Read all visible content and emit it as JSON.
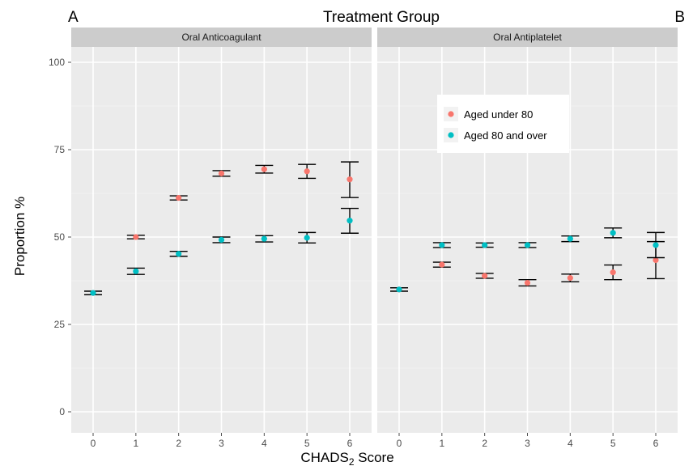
{
  "figure": {
    "title": "Treatment Group",
    "label_a": "A",
    "label_b": "B"
  },
  "axes": {
    "ylabel": "Proportion %",
    "xlabel_main": "CHADS",
    "xlabel_sub": "2",
    "xlabel_tail": " Score"
  },
  "colors": {
    "panel_bg": "#ebebeb",
    "strip_bg": "#cccccc",
    "grid": "#ffffff",
    "under80": "#f8766d",
    "over80": "#00bfc4",
    "errorbar": "#000000"
  },
  "chart_data": {
    "type": "scatter",
    "subtype": "point-with-error-bars, faceted",
    "x_label": "CHADS2 Score",
    "y_label": "Proportion %",
    "ylim": [
      0,
      100
    ],
    "y_ticks": [
      0,
      25,
      50,
      75,
      100
    ],
    "x_ticks": [
      0,
      1,
      2,
      3,
      4,
      5,
      6
    ],
    "grid": true,
    "legend": {
      "placement": "inside-right-panel, upper-left",
      "entries": [
        "Aged under 80",
        "Aged 80 and over"
      ]
    },
    "panels": [
      {
        "strip": "Oral Anticoagulant",
        "series": [
          {
            "name": "Aged under 80",
            "color": "#f8766d",
            "points": [
              {
                "x": 0,
                "y": 34.0,
                "lo": 33.5,
                "hi": 34.5
              },
              {
                "x": 1,
                "y": 50.0,
                "lo": 49.5,
                "hi": 50.5
              },
              {
                "x": 2,
                "y": 61.2,
                "lo": 60.6,
                "hi": 61.8
              },
              {
                "x": 3,
                "y": 68.2,
                "lo": 67.4,
                "hi": 69.0
              },
              {
                "x": 4,
                "y": 69.4,
                "lo": 68.3,
                "hi": 70.5
              },
              {
                "x": 5,
                "y": 68.8,
                "lo": 66.8,
                "hi": 70.8
              },
              {
                "x": 6,
                "y": 66.5,
                "lo": 61.3,
                "hi": 71.5
              }
            ]
          },
          {
            "name": "Aged 80 and over",
            "color": "#00bfc4",
            "points": [
              {
                "x": 0,
                "y": 34.0,
                "lo": 33.5,
                "hi": 34.5
              },
              {
                "x": 1,
                "y": 40.2,
                "lo": 39.3,
                "hi": 41.1
              },
              {
                "x": 2,
                "y": 45.2,
                "lo": 44.5,
                "hi": 45.9
              },
              {
                "x": 3,
                "y": 49.2,
                "lo": 48.4,
                "hi": 50.0
              },
              {
                "x": 4,
                "y": 49.5,
                "lo": 48.6,
                "hi": 50.4
              },
              {
                "x": 5,
                "y": 49.8,
                "lo": 48.3,
                "hi": 51.3
              },
              {
                "x": 6,
                "y": 54.7,
                "lo": 51.1,
                "hi": 58.2
              }
            ]
          }
        ]
      },
      {
        "strip": "Oral Antiplatelet",
        "series": [
          {
            "name": "Aged under 80",
            "color": "#f8766d",
            "points": [
              {
                "x": 0,
                "y": 35.0,
                "lo": 34.5,
                "hi": 35.5
              },
              {
                "x": 1,
                "y": 42.1,
                "lo": 41.4,
                "hi": 42.8
              },
              {
                "x": 2,
                "y": 38.9,
                "lo": 38.2,
                "hi": 39.6
              },
              {
                "x": 3,
                "y": 36.9,
                "lo": 36.0,
                "hi": 37.8
              },
              {
                "x": 4,
                "y": 38.3,
                "lo": 37.2,
                "hi": 39.4
              },
              {
                "x": 5,
                "y": 39.9,
                "lo": 37.8,
                "hi": 42.0
              },
              {
                "x": 6,
                "y": 43.4,
                "lo": 38.1,
                "hi": 48.7
              }
            ]
          },
          {
            "name": "Aged 80 and over",
            "color": "#00bfc4",
            "points": [
              {
                "x": 0,
                "y": 35.0,
                "lo": 34.5,
                "hi": 35.5
              },
              {
                "x": 1,
                "y": 47.7,
                "lo": 47.0,
                "hi": 48.4
              },
              {
                "x": 2,
                "y": 47.7,
                "lo": 47.1,
                "hi": 48.3
              },
              {
                "x": 3,
                "y": 47.7,
                "lo": 47.0,
                "hi": 48.4
              },
              {
                "x": 4,
                "y": 49.5,
                "lo": 48.7,
                "hi": 50.3
              },
              {
                "x": 5,
                "y": 51.2,
                "lo": 49.8,
                "hi": 52.6
              },
              {
                "x": 6,
                "y": 47.7,
                "lo": 44.1,
                "hi": 51.3
              }
            ]
          }
        ]
      }
    ]
  }
}
